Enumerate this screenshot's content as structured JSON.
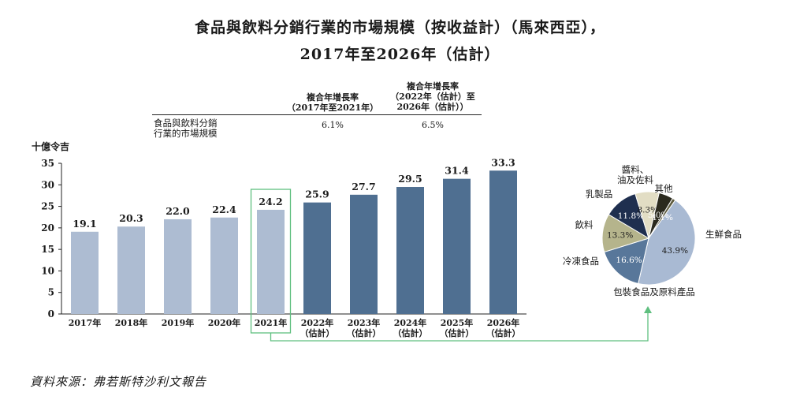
{
  "title_line1": "食品與飲料分銷行業的市場規模（按收益計）（馬來西亞），",
  "title_line2": "2017年至2026年（估計）",
  "cagr_table": {
    "col1_header": [
      "複合年增長率",
      "（2017年至2021年）"
    ],
    "col2_header": [
      "複合年增長率",
      "（2022年（估計）至",
      "2026年（估計））"
    ],
    "row_label": [
      "食品與飲料分銷",
      "行業的市場規模"
    ],
    "col1_value": "6.1%",
    "col2_value": "6.5%"
  },
  "source_note": "資料來源：弗若斯特沙利文報告",
  "colors": {
    "historical_bar": "#adbcd2",
    "forecast_bar": "#4f6f91",
    "highlight_box": "#5fbf7f"
  },
  "chart_data": [
    {
      "type": "bar",
      "ylabel": "十億令吉",
      "ylim": [
        0,
        35
      ],
      "yticks": [
        0,
        5,
        10,
        15,
        20,
        25,
        30,
        35
      ],
      "categories": [
        [
          "2017年"
        ],
        [
          "2018年"
        ],
        [
          "2019年"
        ],
        [
          "2020年"
        ],
        [
          "2021年"
        ],
        [
          "2022年",
          "（估計）"
        ],
        [
          "2023年",
          "（估計）"
        ],
        [
          "2024年",
          "（估計）"
        ],
        [
          "2025年",
          "（估計）"
        ],
        [
          "2026年",
          "（估計）"
        ]
      ],
      "values": [
        19.1,
        20.3,
        22.0,
        22.4,
        24.2,
        25.9,
        27.7,
        29.5,
        31.4,
        33.3
      ],
      "value_labels": [
        "19.1",
        "20.3",
        "22.0",
        "22.4",
        "24.2",
        "25.9",
        "27.7",
        "29.5",
        "31.4",
        "33.3"
      ],
      "forecast_from_index": 5,
      "highlighted_index": 4
    },
    {
      "type": "pie",
      "slices": [
        {
          "label": "生鮮食品",
          "value": 43.9,
          "value_label": "43.9%",
          "color": "#a9bad3",
          "label_color": "#1a1a1a"
        },
        {
          "label": "包裝食品及原料產品",
          "value": 16.6,
          "value_label": "16.6%",
          "color": "#58779a",
          "label_color": "#ffffff"
        },
        {
          "label": "冷凍食品",
          "value": 13.3,
          "value_label": "13.3%",
          "color": "#b5b48c",
          "label_color": "#1a1a1a"
        },
        {
          "label": "飲料",
          "value": 11.8,
          "value_label": "11.8%",
          "color": "#1f2f4f",
          "label_color": "#ffffff"
        },
        {
          "label": "乳製品",
          "value": 8.3,
          "value_label": "8.3%",
          "color": "#e2ddc4",
          "label_color": "#1a1a1a"
        },
        {
          "label": "醬料、油及佐料",
          "value": 5.0,
          "value_label": "5.0%",
          "color": "#2b2a1e",
          "label_color": "#ffffff"
        },
        {
          "label": "其他",
          "value": 1.1,
          "value_label": "1.1%",
          "color": "#5e5c40",
          "label_color": "#ffffff"
        }
      ]
    }
  ]
}
